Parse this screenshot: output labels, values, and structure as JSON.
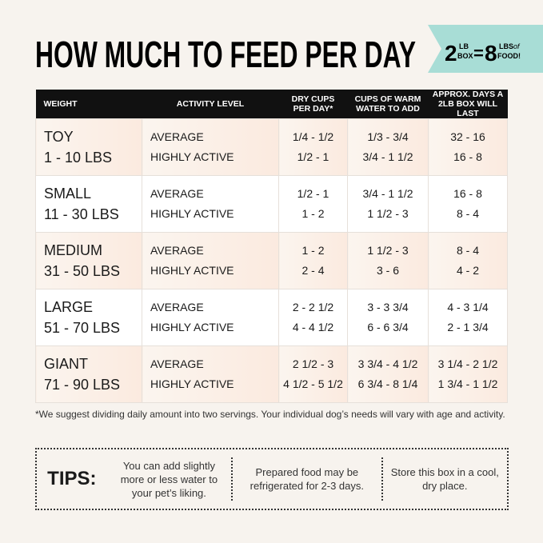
{
  "header": {
    "title": "HOW MUCH TO FEED PER DAY",
    "badge": {
      "lhs": "2",
      "lhs_unit_top": "LB",
      "lhs_unit_bottom": "BOX",
      "equals": "=",
      "rhs": "8",
      "rhs_unit_top": "LBS",
      "rhs_of": "of",
      "rhs_unit_bottom": "FOOD!"
    }
  },
  "table": {
    "columns": [
      "WEIGHT",
      "ACTIVITY LEVEL",
      "DRY CUPS PER DAY*",
      "CUPS OF WARM WATER TO ADD",
      "APPROX. DAYS A 2LB BOX WILL LAST"
    ],
    "rows": [
      {
        "size": "TOY",
        "weight": "1 - 10 LBS",
        "levels": [
          "AVERAGE",
          "HIGHLY ACTIVE"
        ],
        "dry": [
          "1/4 - 1/2",
          "1/2 - 1"
        ],
        "water": [
          "1/3 - 3/4",
          "3/4 - 1 1/2"
        ],
        "days": [
          "32 - 16",
          "16 - 8"
        ]
      },
      {
        "size": "SMALL",
        "weight": "11 - 30 LBS",
        "levels": [
          "AVERAGE",
          "HIGHLY ACTIVE"
        ],
        "dry": [
          "1/2 - 1",
          "1 - 2"
        ],
        "water": [
          "3/4 - 1 1/2",
          "1 1/2 - 3"
        ],
        "days": [
          "16 - 8",
          "8 - 4"
        ]
      },
      {
        "size": "MEDIUM",
        "weight": "31 - 50 LBS",
        "levels": [
          "AVERAGE",
          "HIGHLY ACTIVE"
        ],
        "dry": [
          "1 - 2",
          "2 - 4"
        ],
        "water": [
          "1 1/2 - 3",
          "3 - 6"
        ],
        "days": [
          "8 - 4",
          "4 - 2"
        ]
      },
      {
        "size": "LARGE",
        "weight": "51 - 70 LBS",
        "levels": [
          "AVERAGE",
          "HIGHLY ACTIVE"
        ],
        "dry": [
          "2 - 2 1/2",
          "4 - 4 1/2"
        ],
        "water": [
          "3 - 3 3/4",
          "6 - 6 3/4"
        ],
        "days": [
          "4 - 3 1/4",
          "2 - 1 3/4"
        ]
      },
      {
        "size": "GIANT",
        "weight": "71 - 90 LBS",
        "levels": [
          "AVERAGE",
          "HIGHLY ACTIVE"
        ],
        "dry": [
          "2 1/2 - 3",
          "4 1/2 - 5 1/2"
        ],
        "water": [
          "3 3/4 - 4 1/2",
          "6 3/4 - 8 1/4"
        ],
        "days": [
          "3 1/4 - 2 1/2",
          "1 3/4 - 1 1/2"
        ]
      }
    ]
  },
  "footnote": "*We suggest dividing daily amount into two servings. Your individual dog’s needs will vary with age and activity.",
  "tips": {
    "label": "TIPS:",
    "items": [
      "You can add slightly more or less water to your pet’s liking.",
      "Prepared food may be refrigerated for 2-3 days.",
      "Store this box in a cool, dry place."
    ]
  }
}
